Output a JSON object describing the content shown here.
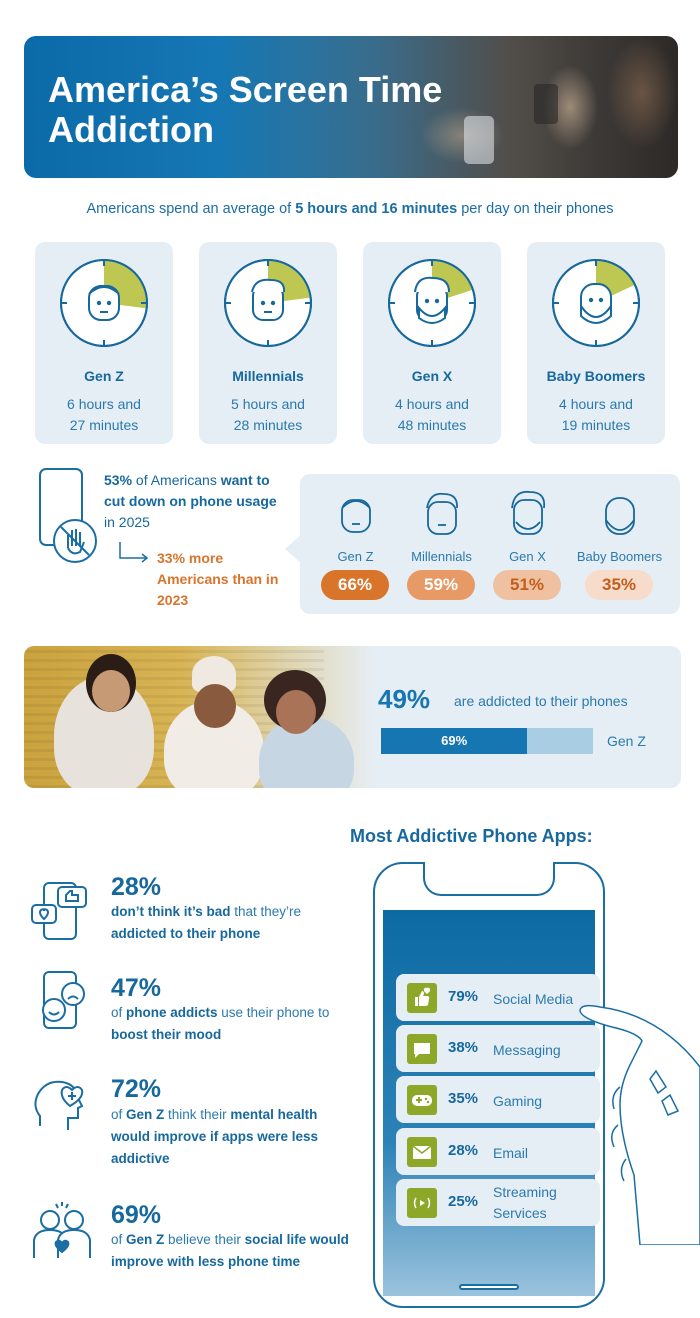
{
  "header": {
    "title": "America’s Screen Time Addiction"
  },
  "subtitle": {
    "prefix": "Americans spend an average of ",
    "highlight": "5 hours and 16 minutes",
    "suffix": " per day on their phones"
  },
  "generations": [
    {
      "name": "Gen Z",
      "time_line1": "6 hours and",
      "time_line2": "27 minutes",
      "fraction_of_day": 0.27
    },
    {
      "name": "Millennials",
      "time_line1": "5 hours and",
      "time_line2": "28 minutes",
      "fraction_of_day": 0.23
    },
    {
      "name": "Gen X",
      "time_line1": "4 hours and",
      "time_line2": "48 minutes",
      "fraction_of_day": 0.2
    },
    {
      "name": "Baby Boomers",
      "time_line1": "4 hours and",
      "time_line2": "19 minutes",
      "fraction_of_day": 0.18
    }
  ],
  "cut_down": {
    "pct": "53%",
    "text1": " of Americans ",
    "bold1": "want to cut down on phone usage",
    "text2": " in 2025",
    "more": "33% more Americans than in 2023",
    "groups": [
      {
        "name": "Gen Z",
        "pct": "66%",
        "color": "#d9742b",
        "text_color": "#ffffff"
      },
      {
        "name": "Millennials",
        "pct": "59%",
        "color": "#e79a65",
        "text_color": "#ffffff"
      },
      {
        "name": "Gen X",
        "pct": "51%",
        "color": "#f0c1a1",
        "text_color": "#c25f1d"
      },
      {
        "name": "Baby Boomers",
        "pct": "35%",
        "color": "#f7dccb",
        "text_color": "#c25f1d"
      }
    ]
  },
  "addicted": {
    "pct": "49%",
    "text": "are addicted to their phones",
    "bar_label": "69%",
    "bar_value": 0.69,
    "bar_group": "Gen Z"
  },
  "stats": [
    {
      "pct": "28%",
      "parts": [
        {
          "b": "don’t think it’s bad"
        },
        {
          "t": " that they’re "
        },
        {
          "b": "addicted to their phone"
        }
      ]
    },
    {
      "pct": "47%",
      "parts": [
        {
          "t": "of "
        },
        {
          "b": "phone addicts"
        },
        {
          "t": " use their phone to "
        },
        {
          "b": "boost their mood"
        }
      ]
    },
    {
      "pct": "72%",
      "parts": [
        {
          "t": "of "
        },
        {
          "b": "Gen Z"
        },
        {
          "t": " think their "
        },
        {
          "b": "mental health would improve if apps were less addictive"
        }
      ]
    },
    {
      "pct": "69%",
      "parts": [
        {
          "t": "of "
        },
        {
          "b": "Gen Z"
        },
        {
          "t": " believe their "
        },
        {
          "b": "social life would improve with less phone time"
        }
      ]
    }
  ],
  "apps": {
    "title": "Most Addictive Phone Apps:",
    "items": [
      {
        "pct": "79%",
        "name": "Social Media",
        "icon": "like-icon",
        "glyph": "👍"
      },
      {
        "pct": "38%",
        "name": "Messaging",
        "icon": "message-icon",
        "glyph": "▬"
      },
      {
        "pct": "35%",
        "name": "Gaming",
        "icon": "gamepad-icon",
        "glyph": "✚"
      },
      {
        "pct": "28%",
        "name": "Email",
        "icon": "email-icon",
        "glyph": "✉"
      },
      {
        "pct": "25%",
        "name": "Streaming Services",
        "icon": "streaming-icon",
        "glyph": "((•))"
      }
    ]
  },
  "colors": {
    "primary": "#1576b2",
    "lime": "#8da728",
    "orange": "#d9742b",
    "panel": "#e6eef5"
  }
}
